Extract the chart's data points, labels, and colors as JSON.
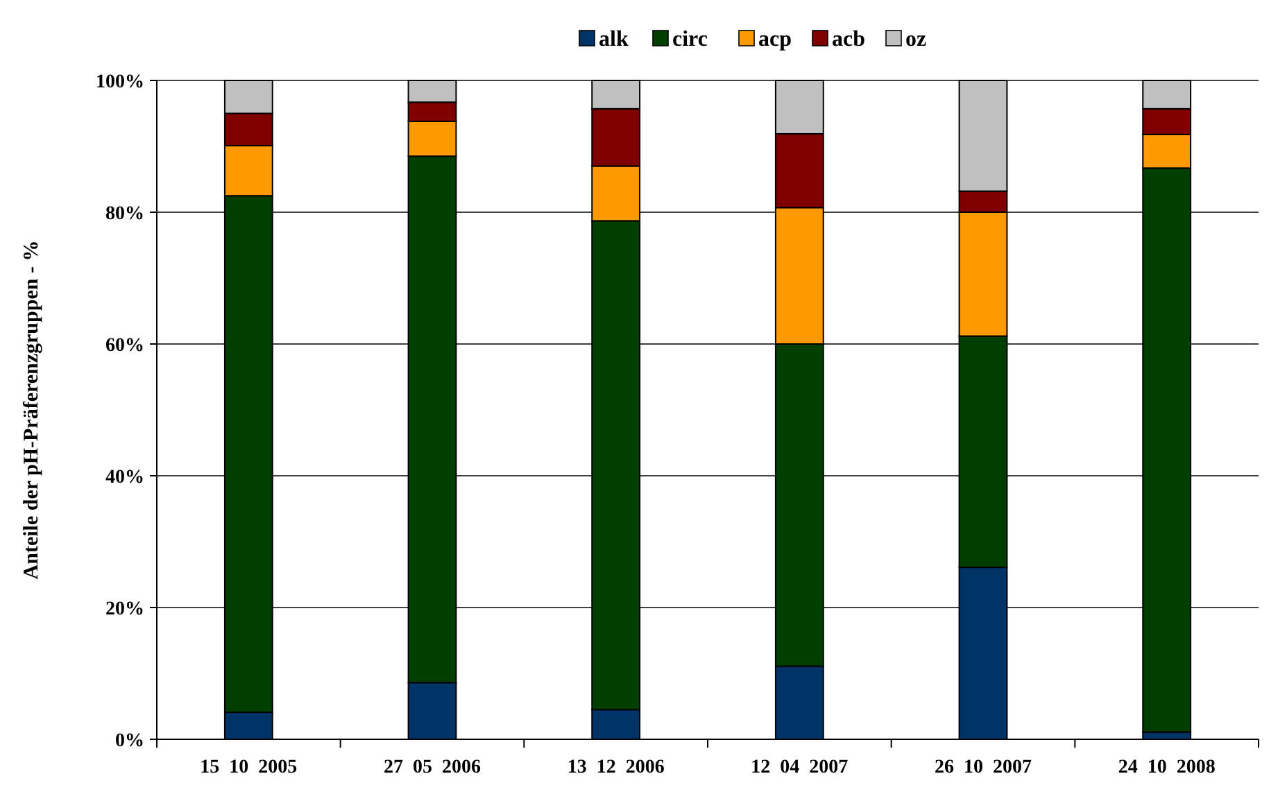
{
  "chart_data": {
    "type": "bar",
    "stacked": true,
    "ylabel": "Anteile der pH-Präferenzgruppen - %",
    "categories": [
      "15  10  2005",
      "27  05  2006",
      "13  12  2006",
      "12  04  2007",
      "26  10  2007",
      "24  10  2008"
    ],
    "series": [
      {
        "name": "alk",
        "color": "#003366",
        "values": [
          4.1,
          8.6,
          4.5,
          11.1,
          26.1,
          1.1
        ]
      },
      {
        "name": "circ",
        "color": "#003f00",
        "values": [
          78.4,
          79.9,
          74.2,
          48.9,
          35.1,
          85.6
        ]
      },
      {
        "name": "acp",
        "color": "#ff9900",
        "values": [
          7.6,
          5.3,
          8.3,
          20.7,
          18.8,
          5.1
        ]
      },
      {
        "name": "acb",
        "color": "#800000",
        "values": [
          4.9,
          2.9,
          8.7,
          11.2,
          3.2,
          3.9
        ]
      },
      {
        "name": "oz",
        "color": "#c0c0c0",
        "values": [
          5.0,
          3.3,
          4.3,
          8.1,
          16.8,
          4.3
        ]
      }
    ],
    "ylim": [
      0,
      100
    ],
    "yticks": [
      {
        "value": 0,
        "label": "0%"
      },
      {
        "value": 20,
        "label": "20%"
      },
      {
        "value": 40,
        "label": "40%"
      },
      {
        "value": 60,
        "label": "60%"
      },
      {
        "value": 80,
        "label": "80%"
      },
      {
        "value": 100,
        "label": "100%"
      }
    ],
    "grid": "y",
    "legend": "top"
  }
}
